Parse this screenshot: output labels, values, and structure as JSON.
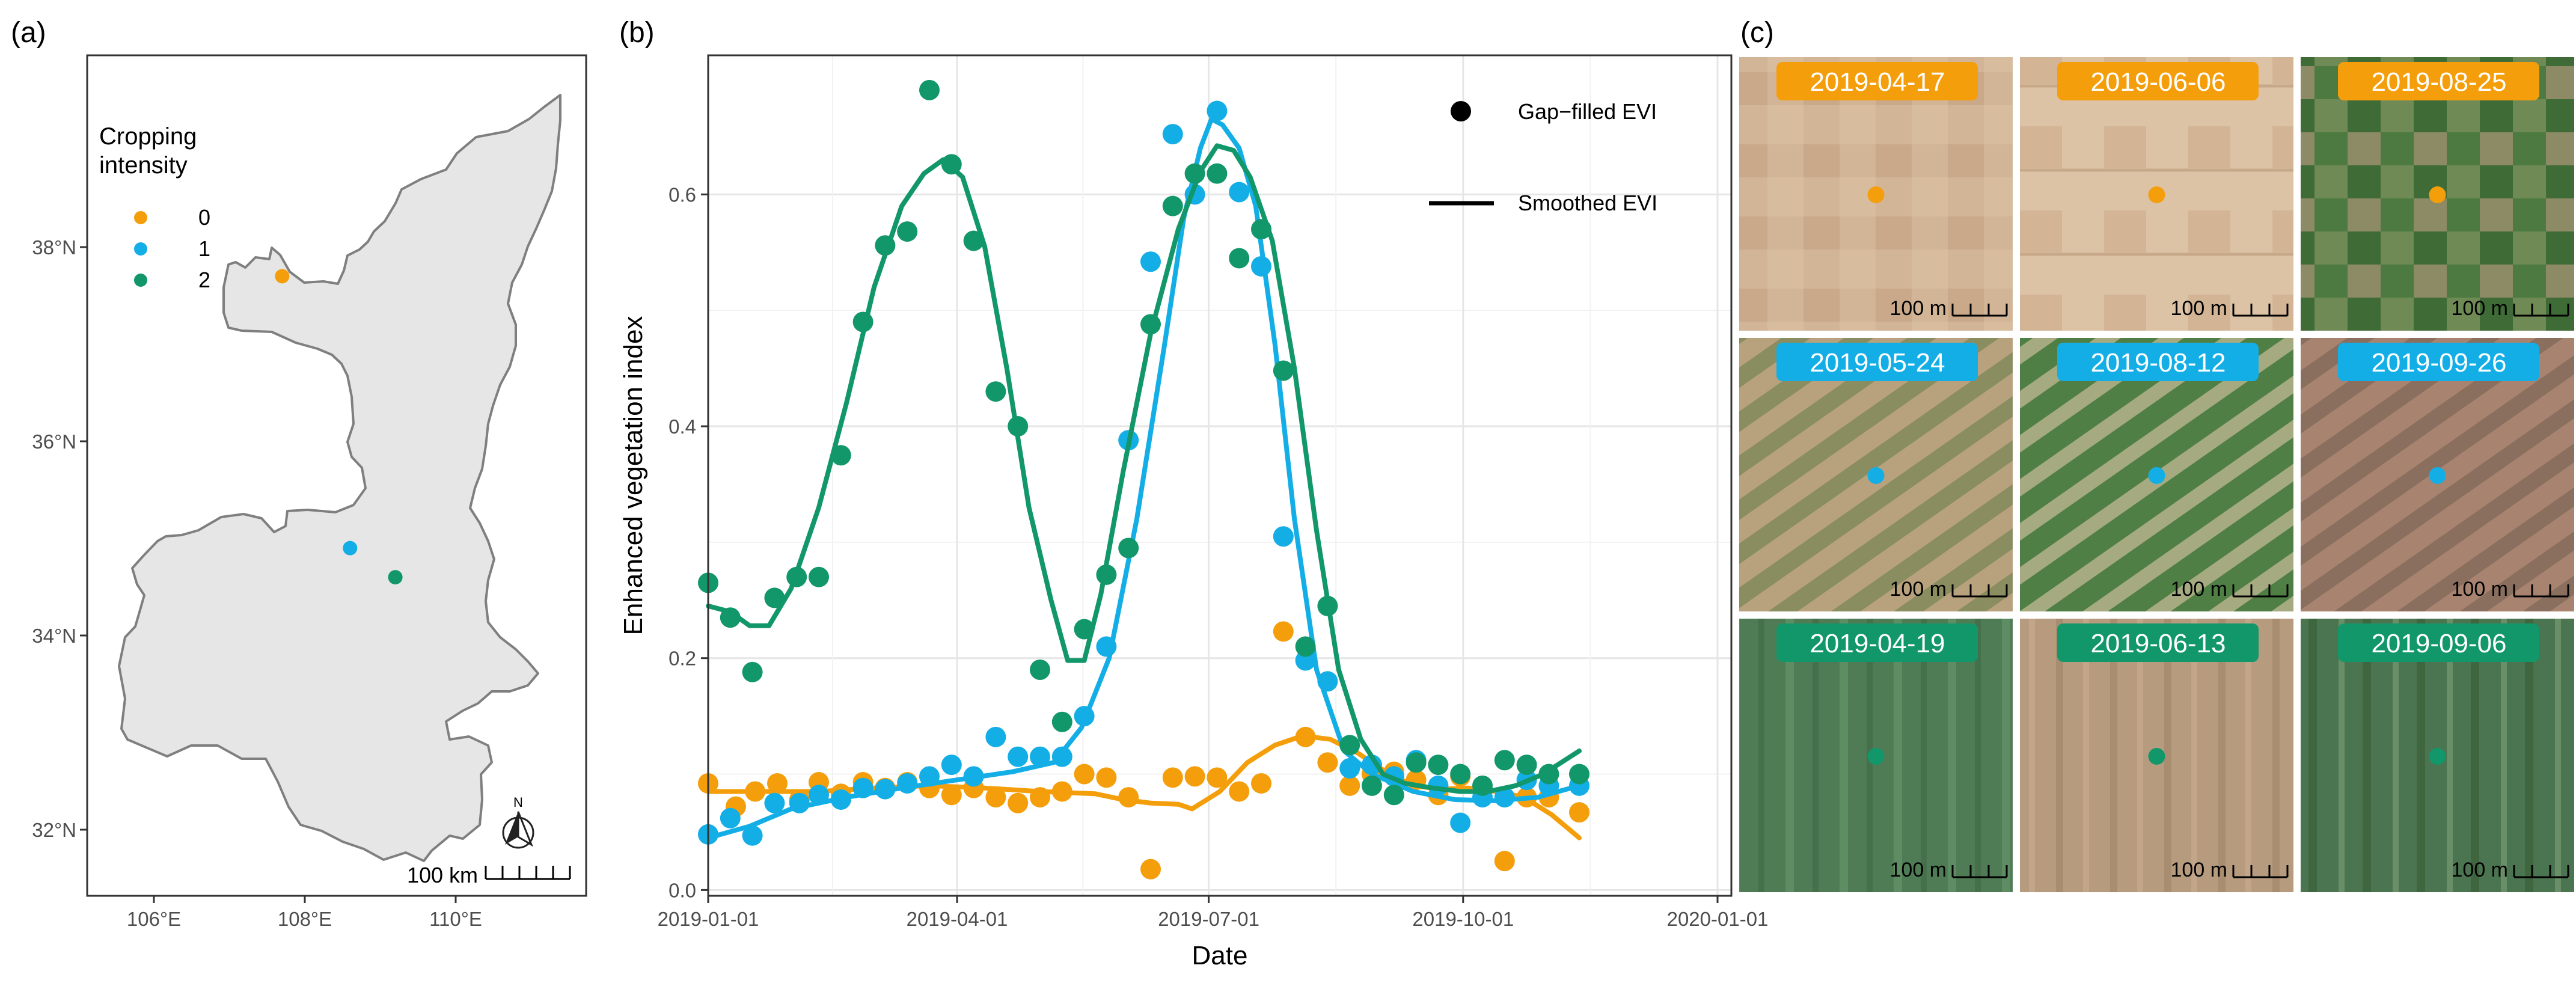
{
  "colors": {
    "intensity_0": "#F59E0B",
    "intensity_1": "#14AEE6",
    "intensity_2": "#12976A",
    "grid": "#E6E6E6",
    "axis": "#333333",
    "land_fill": "#E6E6E6",
    "land_border": "#7F7F7F"
  },
  "panels": {
    "a": "(a)",
    "b": "(b)",
    "c": "(c)"
  },
  "map": {
    "legend_title_line1": "Cropping",
    "legend_title_line2": "intensity",
    "legend_labels": [
      "0",
      "1",
      "2"
    ],
    "lat_labels": [
      "38°N",
      "36°N",
      "34°N",
      "32°N"
    ],
    "lon_labels": [
      "106°E",
      "108°E",
      "110°E"
    ],
    "scale_label": "100 km",
    "north_label": "N",
    "sites": [
      {
        "intensity": 0,
        "lon": 107.7,
        "lat": 37.7
      },
      {
        "intensity": 1,
        "lon": 108.6,
        "lat": 34.9
      },
      {
        "intensity": 2,
        "lon": 109.2,
        "lat": 34.6
      }
    ]
  },
  "chart_data": {
    "type": "scatter",
    "title": "",
    "xlabel": "Date",
    "ylabel": "Enhanced vegetation index",
    "xlim": [
      0,
      370
    ],
    "ylim": [
      -0.005,
      0.72
    ],
    "x_tick_labels": [
      "2019-01-01",
      "2019-04-01",
      "2019-07-01",
      "2019-10-01",
      "2020-01-01"
    ],
    "x_tick_doy": [
      0,
      90,
      181,
      273,
      365
    ],
    "y_tick_labels": [
      "0.0",
      "0.2",
      "0.4",
      "0.6"
    ],
    "y_tick_values": [
      0,
      0.2,
      0.4,
      0.6
    ],
    "legend": {
      "points": "Gap−filled EVI",
      "line": "Smoothed EVI"
    },
    "series": [
      {
        "name": "0",
        "color_key": "intensity_0",
        "points": [
          [
            0,
            0.092
          ],
          [
            10,
            0.072
          ],
          [
            17,
            0.085
          ],
          [
            25,
            0.092
          ],
          [
            33,
            0.078
          ],
          [
            40,
            0.093
          ],
          [
            48,
            0.083
          ],
          [
            56,
            0.093
          ],
          [
            64,
            0.088
          ],
          [
            72,
            0.093
          ],
          [
            80,
            0.088
          ],
          [
            88,
            0.082
          ],
          [
            96,
            0.088
          ],
          [
            104,
            0.08
          ],
          [
            112,
            0.075
          ],
          [
            120,
            0.08
          ],
          [
            128,
            0.085
          ],
          [
            136,
            0.1
          ],
          [
            144,
            0.097
          ],
          [
            152,
            0.08
          ],
          [
            160,
            0.018
          ],
          [
            168,
            0.097
          ],
          [
            176,
            0.098
          ],
          [
            184,
            0.097
          ],
          [
            192,
            0.085
          ],
          [
            200,
            0.092
          ],
          [
            208,
            0.223
          ],
          [
            216,
            0.132
          ],
          [
            224,
            0.11
          ],
          [
            232,
            0.09
          ],
          [
            240,
            0.1
          ],
          [
            248,
            0.102
          ],
          [
            256,
            0.095
          ],
          [
            264,
            0.082
          ],
          [
            272,
            0.098
          ],
          [
            280,
            0.087
          ],
          [
            288,
            0.025
          ],
          [
            296,
            0.08
          ],
          [
            304,
            0.08
          ],
          [
            315,
            0.067
          ]
        ],
        "smooth": [
          [
            0,
            0.085
          ],
          [
            20,
            0.085
          ],
          [
            40,
            0.085
          ],
          [
            60,
            0.088
          ],
          [
            80,
            0.09
          ],
          [
            100,
            0.088
          ],
          [
            120,
            0.085
          ],
          [
            140,
            0.083
          ],
          [
            150,
            0.078
          ],
          [
            160,
            0.075
          ],
          [
            170,
            0.074
          ],
          [
            175,
            0.07
          ],
          [
            185,
            0.085
          ],
          [
            195,
            0.11
          ],
          [
            205,
            0.125
          ],
          [
            215,
            0.133
          ],
          [
            225,
            0.13
          ],
          [
            235,
            0.118
          ],
          [
            245,
            0.102
          ],
          [
            255,
            0.09
          ],
          [
            265,
            0.087
          ],
          [
            275,
            0.088
          ],
          [
            285,
            0.085
          ],
          [
            295,
            0.08
          ],
          [
            305,
            0.065
          ],
          [
            315,
            0.045
          ]
        ]
      },
      {
        "name": "1",
        "color_key": "intensity_1",
        "points": [
          [
            0,
            0.048
          ],
          [
            8,
            0.062
          ],
          [
            16,
            0.047
          ],
          [
            24,
            0.075
          ],
          [
            33,
            0.075
          ],
          [
            40,
            0.082
          ],
          [
            48,
            0.078
          ],
          [
            56,
            0.088
          ],
          [
            64,
            0.087
          ],
          [
            72,
            0.092
          ],
          [
            80,
            0.098
          ],
          [
            88,
            0.108
          ],
          [
            96,
            0.098
          ],
          [
            104,
            0.132
          ],
          [
            112,
            0.115
          ],
          [
            120,
            0.115
          ],
          [
            128,
            0.115
          ],
          [
            136,
            0.15
          ],
          [
            144,
            0.21
          ],
          [
            152,
            0.388
          ],
          [
            160,
            0.542
          ],
          [
            168,
            0.652
          ],
          [
            176,
            0.6
          ],
          [
            184,
            0.672
          ],
          [
            192,
            0.602
          ],
          [
            200,
            0.538
          ],
          [
            208,
            0.305
          ],
          [
            216,
            0.198
          ],
          [
            224,
            0.18
          ],
          [
            232,
            0.105
          ],
          [
            240,
            0.108
          ],
          [
            248,
            0.098
          ],
          [
            256,
            0.112
          ],
          [
            264,
            0.09
          ],
          [
            272,
            0.058
          ],
          [
            280,
            0.08
          ],
          [
            288,
            0.08
          ],
          [
            296,
            0.095
          ],
          [
            304,
            0.09
          ],
          [
            315,
            0.09
          ]
        ],
        "smooth": [
          [
            0,
            0.045
          ],
          [
            15,
            0.055
          ],
          [
            30,
            0.07
          ],
          [
            50,
            0.08
          ],
          [
            70,
            0.088
          ],
          [
            90,
            0.095
          ],
          [
            110,
            0.102
          ],
          [
            125,
            0.11
          ],
          [
            135,
            0.14
          ],
          [
            145,
            0.2
          ],
          [
            155,
            0.32
          ],
          [
            165,
            0.47
          ],
          [
            172,
            0.58
          ],
          [
            178,
            0.64
          ],
          [
            182,
            0.665
          ],
          [
            186,
            0.66
          ],
          [
            192,
            0.64
          ],
          [
            198,
            0.59
          ],
          [
            205,
            0.47
          ],
          [
            212,
            0.32
          ],
          [
            220,
            0.19
          ],
          [
            230,
            0.12
          ],
          [
            240,
            0.1
          ],
          [
            255,
            0.085
          ],
          [
            270,
            0.078
          ],
          [
            285,
            0.077
          ],
          [
            300,
            0.08
          ],
          [
            315,
            0.09
          ]
        ]
      },
      {
        "name": "2",
        "color_key": "intensity_2",
        "points": [
          [
            0,
            0.265
          ],
          [
            8,
            0.235
          ],
          [
            16,
            0.188
          ],
          [
            24,
            0.252
          ],
          [
            32,
            0.27
          ],
          [
            40,
            0.27
          ],
          [
            48,
            0.375
          ],
          [
            56,
            0.49
          ],
          [
            64,
            0.556
          ],
          [
            72,
            0.568
          ],
          [
            80,
            0.69
          ],
          [
            88,
            0.626
          ],
          [
            96,
            0.56
          ],
          [
            104,
            0.43
          ],
          [
            112,
            0.4
          ],
          [
            120,
            0.19
          ],
          [
            128,
            0.145
          ],
          [
            136,
            0.225
          ],
          [
            144,
            0.272
          ],
          [
            152,
            0.295
          ],
          [
            160,
            0.488
          ],
          [
            168,
            0.59
          ],
          [
            176,
            0.618
          ],
          [
            184,
            0.618
          ],
          [
            192,
            0.545
          ],
          [
            200,
            0.57
          ],
          [
            208,
            0.448
          ],
          [
            216,
            0.21
          ],
          [
            224,
            0.245
          ],
          [
            232,
            0.125
          ],
          [
            240,
            0.09
          ],
          [
            248,
            0.082
          ],
          [
            256,
            0.11
          ],
          [
            264,
            0.108
          ],
          [
            272,
            0.1
          ],
          [
            280,
            0.09
          ],
          [
            288,
            0.112
          ],
          [
            296,
            0.108
          ],
          [
            304,
            0.1
          ],
          [
            315,
            0.1
          ]
        ],
        "smooth": [
          [
            0,
            0.245
          ],
          [
            8,
            0.24
          ],
          [
            15,
            0.228
          ],
          [
            22,
            0.228
          ],
          [
            30,
            0.26
          ],
          [
            40,
            0.33
          ],
          [
            50,
            0.42
          ],
          [
            60,
            0.52
          ],
          [
            70,
            0.59
          ],
          [
            78,
            0.618
          ],
          [
            85,
            0.63
          ],
          [
            92,
            0.615
          ],
          [
            100,
            0.555
          ],
          [
            108,
            0.45
          ],
          [
            116,
            0.33
          ],
          [
            124,
            0.25
          ],
          [
            130,
            0.198
          ],
          [
            136,
            0.198
          ],
          [
            142,
            0.255
          ],
          [
            150,
            0.36
          ],
          [
            160,
            0.48
          ],
          [
            170,
            0.57
          ],
          [
            178,
            0.62
          ],
          [
            184,
            0.642
          ],
          [
            190,
            0.638
          ],
          [
            196,
            0.615
          ],
          [
            204,
            0.56
          ],
          [
            212,
            0.45
          ],
          [
            220,
            0.31
          ],
          [
            228,
            0.19
          ],
          [
            236,
            0.13
          ],
          [
            244,
            0.1
          ],
          [
            252,
            0.092
          ],
          [
            262,
            0.088
          ],
          [
            272,
            0.085
          ],
          [
            282,
            0.085
          ],
          [
            292,
            0.09
          ],
          [
            302,
            0.1
          ],
          [
            315,
            0.12
          ]
        ]
      }
    ]
  },
  "imagery": {
    "scale_label": "100 m",
    "tiles": [
      {
        "date": "2019-04-17",
        "intensity": 0
      },
      {
        "date": "2019-06-06",
        "intensity": 0
      },
      {
        "date": "2019-08-25",
        "intensity": 0
      },
      {
        "date": "2019-05-24",
        "intensity": 1
      },
      {
        "date": "2019-08-12",
        "intensity": 1
      },
      {
        "date": "2019-09-26",
        "intensity": 1
      },
      {
        "date": "2019-04-19",
        "intensity": 2
      },
      {
        "date": "2019-06-13",
        "intensity": 2
      },
      {
        "date": "2019-09-06",
        "intensity": 2
      }
    ]
  }
}
